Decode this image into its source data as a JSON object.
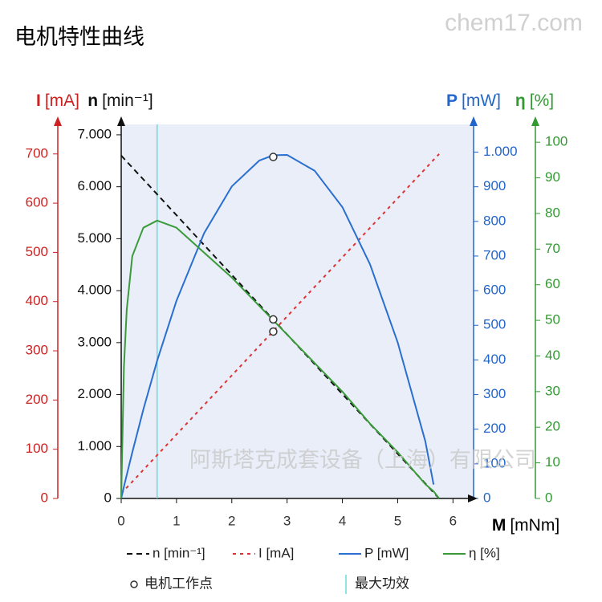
{
  "chart_data": {
    "type": "line",
    "title": "电机特性曲线",
    "watermarks": [
      "chem17.com",
      "阿斯塔克成套设备（上海）有限公司"
    ],
    "x_title": "M",
    "x_unit": "[mNm]",
    "xlim": [
      0,
      6.3
    ],
    "xticks": [
      0,
      1,
      2,
      3,
      4,
      5,
      6
    ],
    "x": [
      0,
      0.05,
      0.1,
      0.2,
      0.4,
      0.65,
      1,
      1.5,
      2,
      2.5,
      2.75,
      3,
      3.5,
      4,
      4.5,
      5,
      5.5,
      5.65,
      5.75
    ],
    "axes": [
      {
        "title": "I",
        "unit": "[mA]",
        "color": "#cc2222",
        "ylim": [
          0,
          760
        ],
        "yticks": [
          0,
          100,
          200,
          300,
          400,
          500,
          600,
          700
        ]
      },
      {
        "title": "n",
        "unit": "[min⁻¹]",
        "color": "#111111",
        "ylim": [
          0,
          7200
        ],
        "yticks": [
          0,
          {
            "value": 1000,
            "label": "1.000"
          },
          {
            "value": 2000,
            "label": "2.000"
          },
          {
            "value": 3000,
            "label": "3.000"
          },
          {
            "value": 4000,
            "label": "4.000"
          },
          {
            "value": 5000,
            "label": "5.000"
          },
          {
            "value": 6000,
            "label": "6.000"
          },
          {
            "value": 7000,
            "label": "7.000"
          }
        ]
      },
      {
        "title": "P",
        "unit": "[mW]",
        "color": "#2266cc",
        "ylim": [
          0,
          1080
        ],
        "yticks": [
          0,
          100,
          200,
          300,
          400,
          500,
          600,
          700,
          800,
          900,
          {
            "value": 1000,
            "label": "1.000"
          }
        ]
      },
      {
        "title": "η",
        "unit": "[%]",
        "color": "#339933",
        "ylim": [
          0,
          105
        ],
        "yticks": [
          0,
          10,
          20,
          30,
          40,
          50,
          60,
          70,
          80,
          90,
          100
        ]
      }
    ],
    "series": [
      {
        "name": "n [min⁻¹]",
        "axis": 1,
        "color": "#111111",
        "line_style": "dashed",
        "values": [
          6600,
          6543,
          6485,
          6370,
          6141,
          5854,
          5452,
          4878,
          4304,
          3730,
          3443,
          3157,
          2583,
          2009,
          1435,
          861,
          287,
          115,
          0
        ]
      },
      {
        "name": "I [mA]",
        "axis": 0,
        "color": "#dd3333",
        "line_style": "dotted",
        "values": [
          10,
          16,
          22,
          34,
          58,
          88,
          130,
          190,
          250,
          310,
          340,
          370,
          430,
          490,
          550,
          610,
          670,
          688,
          700
        ]
      },
      {
        "name": "P [mW]",
        "axis": 2,
        "color": "#2a6fd0",
        "line_style": "solid",
        "values": [
          0,
          34,
          68,
          133,
          257,
          398,
          571,
          766,
          901,
          976,
          991,
          992,
          946,
          841,
          676,
          451,
          165,
          40,
          null
        ]
      },
      {
        "name": "η [%]",
        "axis": 3,
        "color": "#3a9a3a",
        "line_style": "solid",
        "values": [
          0,
          37,
          53,
          68,
          76,
          78,
          76,
          69,
          62,
          54,
          50,
          46,
          38,
          30,
          21,
          13,
          4,
          2,
          0
        ]
      }
    ],
    "operating_point": {
      "label": "电机工作点",
      "x": 2.75,
      "points": [
        {
          "axis": 0,
          "value": 339
        },
        {
          "axis": 1,
          "value": 3447
        },
        {
          "axis": 2,
          "value": 986
        }
      ]
    },
    "max_efficiency": {
      "label": "最大功效",
      "x": 0.65,
      "color": "#66dddd"
    },
    "background": "#e9eef8"
  }
}
